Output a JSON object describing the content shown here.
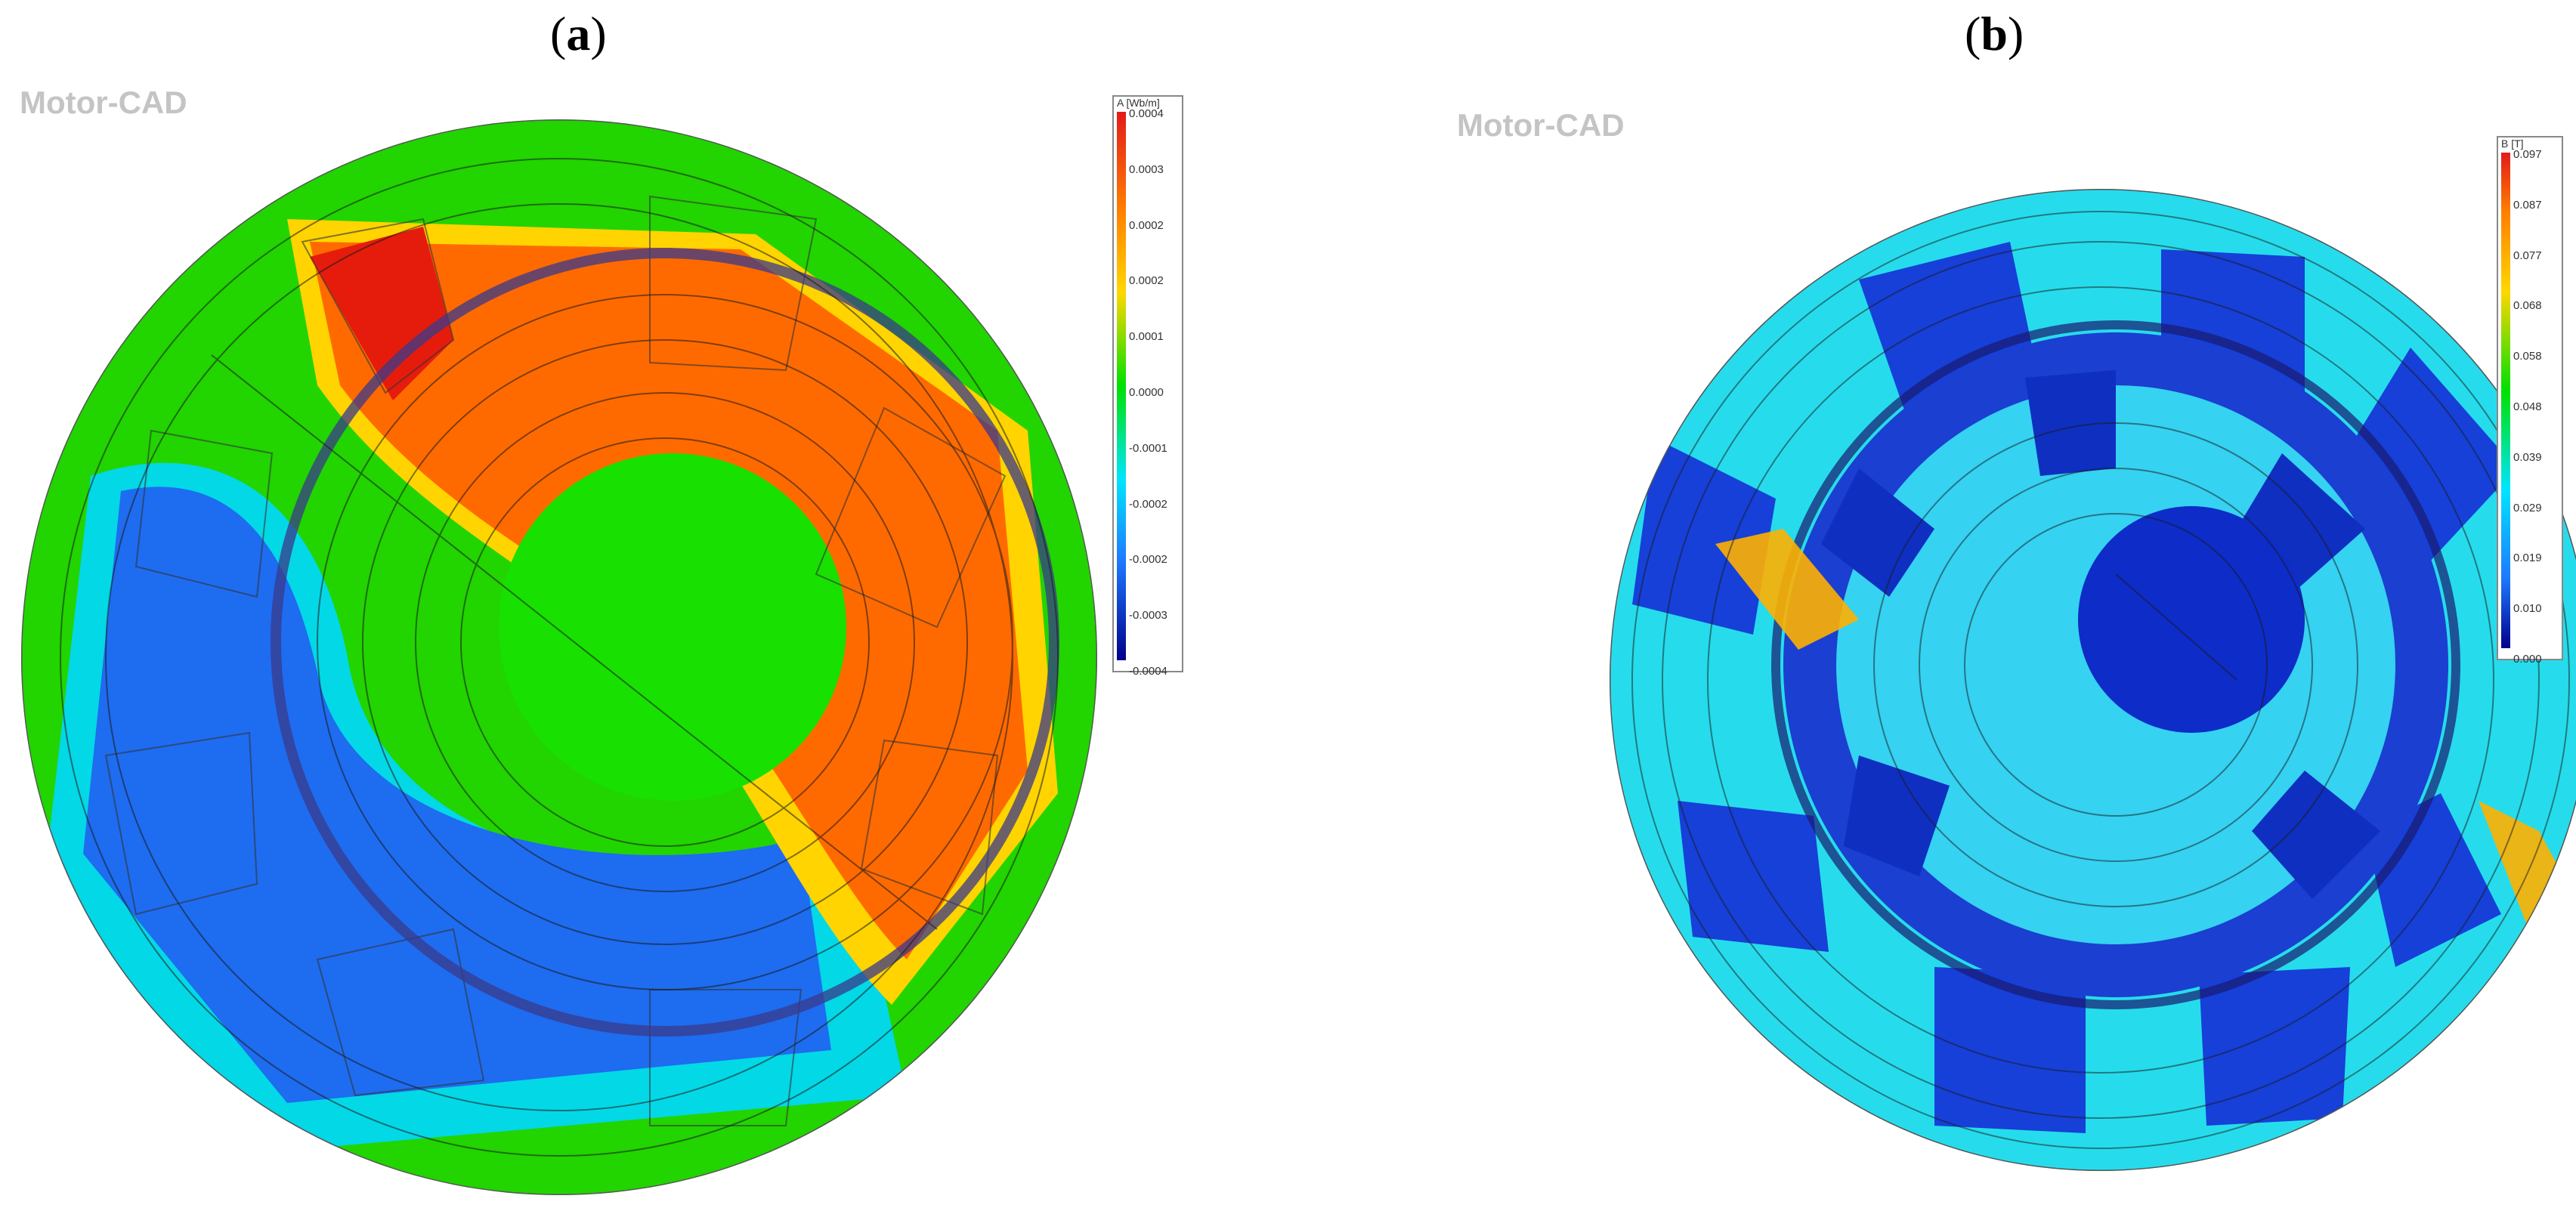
{
  "panels": {
    "a": {
      "label": "a",
      "watermark": "Motor-CAD",
      "legend": {
        "title": "A [Wb/m]",
        "ticks": [
          "0.0004",
          "0.0003",
          "0.0002",
          "0.0002",
          "0.0001",
          "0.0000",
          "-0.0001",
          "-0.0002",
          "-0.0002",
          "-0.0003",
          "-0.0004"
        ]
      }
    },
    "b": {
      "label": "b",
      "watermark": "Motor-CAD",
      "legend": {
        "title": "B [T]",
        "ticks": [
          "0.097",
          "0.087",
          "0.077",
          "0.068",
          "0.058",
          "0.048",
          "0.039",
          "0.029",
          "0.019",
          "0.010",
          "0.000"
        ]
      }
    }
  },
  "colors": {
    "max": "#e31a1c",
    "high": "#ff7f00",
    "mid_high": "#ffd700",
    "mid": "#00e000",
    "mid_low": "#00e5ff",
    "low": "#1e78ff",
    "min": "#00008b"
  }
}
